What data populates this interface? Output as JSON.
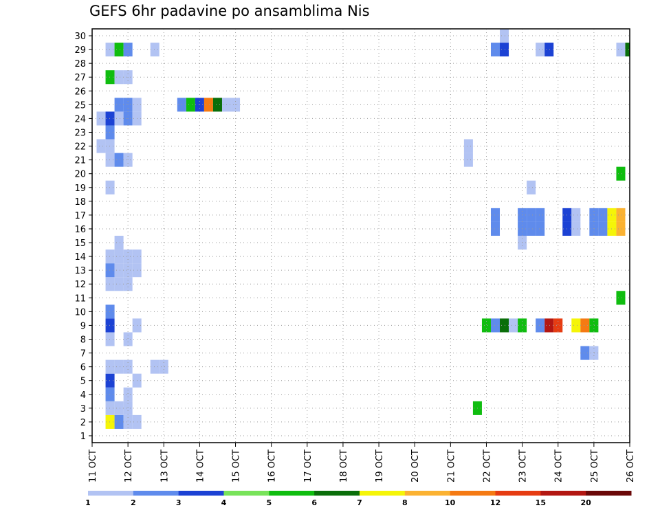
{
  "chart_data": {
    "type": "heatmap",
    "title": "GEFS 6hr padavine po ansamblima Nis",
    "y_ticks": [
      "1",
      "2",
      "3",
      "4",
      "5",
      "6",
      "7",
      "8",
      "9",
      "10",
      "11",
      "12",
      "13",
      "14",
      "15",
      "16",
      "17",
      "18",
      "19",
      "20",
      "21",
      "22",
      "23",
      "24",
      "25",
      "26",
      "27",
      "28",
      "29",
      "30"
    ],
    "ylim": [
      0.5,
      30.5
    ],
    "x_ticks": [
      "11 OCT",
      "12 OCT",
      "13 OCT",
      "14 OCT",
      "15 OCT",
      "16 OCT",
      "17 OCT",
      "18 OCT",
      "19 OCT",
      "20 OCT",
      "21 OCT",
      "22 OCT",
      "23 OCT",
      "24 OCT",
      "25 OCT",
      "26 OCT"
    ],
    "x_start": 11,
    "x_step_days": 0.25,
    "grid": true,
    "colorbar": {
      "labels": [
        "1",
        "2",
        "3",
        "4",
        "5",
        "6",
        "7",
        "8",
        "10",
        "12",
        "15",
        "20"
      ],
      "colors": [
        "#b2c3f3",
        "#5f8bec",
        "#1c42d4",
        "#78e35a",
        "#0fbd0f",
        "#0a6e0a",
        "#f5f508",
        "#fbb232",
        "#f57a13",
        "#e63c12",
        "#b31712",
        "#6b0808"
      ]
    },
    "cells": [
      [
        11.5,
        2,
        7
      ],
      [
        11.75,
        2,
        2
      ],
      [
        12,
        2,
        1
      ],
      [
        12.25,
        2,
        1
      ],
      [
        11.5,
        3,
        1
      ],
      [
        11.75,
        3,
        1
      ],
      [
        12,
        3,
        1
      ],
      [
        21.75,
        3,
        5
      ],
      [
        11.5,
        4,
        2
      ],
      [
        12,
        4,
        1
      ],
      [
        11.5,
        5,
        3
      ],
      [
        12.25,
        5,
        1
      ],
      [
        11.5,
        6,
        1
      ],
      [
        11.75,
        6,
        1
      ],
      [
        12,
        6,
        1
      ],
      [
        12.75,
        6,
        1
      ],
      [
        13,
        6,
        1
      ],
      [
        24.75,
        7,
        2
      ],
      [
        25,
        7,
        1
      ],
      [
        11.5,
        8,
        1
      ],
      [
        12,
        8,
        1
      ],
      [
        11.5,
        9,
        3
      ],
      [
        12.25,
        9,
        1
      ],
      [
        22,
        9,
        5
      ],
      [
        22.25,
        9,
        2
      ],
      [
        22.5,
        9,
        6
      ],
      [
        22.75,
        9,
        1
      ],
      [
        23,
        9,
        5
      ],
      [
        23.5,
        9,
        2
      ],
      [
        23.75,
        9,
        11
      ],
      [
        24,
        9,
        10
      ],
      [
        24.5,
        9,
        7
      ],
      [
        24.75,
        9,
        9
      ],
      [
        25,
        9,
        5
      ],
      [
        11.5,
        10,
        2
      ],
      [
        25.75,
        11,
        5
      ],
      [
        11.5,
        12,
        1
      ],
      [
        11.75,
        12,
        1
      ],
      [
        12,
        12,
        1
      ],
      [
        11.5,
        13,
        2
      ],
      [
        11.75,
        13,
        1
      ],
      [
        12,
        13,
        1
      ],
      [
        12.25,
        13,
        1
      ],
      [
        11.5,
        14,
        1
      ],
      [
        11.75,
        14,
        1
      ],
      [
        12,
        14,
        1
      ],
      [
        12.25,
        14,
        1
      ],
      [
        11.75,
        15,
        1
      ],
      [
        23,
        15,
        1
      ],
      [
        22.25,
        16,
        2
      ],
      [
        23,
        16,
        2
      ],
      [
        23.25,
        16,
        2
      ],
      [
        23.5,
        16,
        2
      ],
      [
        24.25,
        16,
        3
      ],
      [
        24.5,
        16,
        1
      ],
      [
        25,
        16,
        2
      ],
      [
        25.25,
        16,
        2
      ],
      [
        25.5,
        16,
        7
      ],
      [
        25.75,
        16,
        8
      ],
      [
        22.25,
        17,
        2
      ],
      [
        23,
        17,
        2
      ],
      [
        23.25,
        17,
        2
      ],
      [
        23.5,
        17,
        2
      ],
      [
        24.25,
        17,
        3
      ],
      [
        24.5,
        17,
        1
      ],
      [
        25,
        17,
        2
      ],
      [
        25.25,
        17,
        2
      ],
      [
        25.5,
        17,
        7
      ],
      [
        25.75,
        17,
        8
      ],
      [
        23.25,
        19,
        1
      ],
      [
        11.5,
        19,
        1
      ],
      [
        25.75,
        20,
        5
      ],
      [
        11.5,
        21,
        1
      ],
      [
        11.75,
        21,
        2
      ],
      [
        12,
        21,
        1
      ],
      [
        21.5,
        21,
        1
      ],
      [
        11.25,
        22,
        1
      ],
      [
        11.5,
        22,
        1
      ],
      [
        21.5,
        22,
        1
      ],
      [
        11.5,
        23,
        2
      ],
      [
        11.25,
        24,
        1
      ],
      [
        11.5,
        24,
        3
      ],
      [
        11.75,
        24,
        1
      ],
      [
        12,
        24,
        2
      ],
      [
        12.25,
        24,
        1
      ],
      [
        11.75,
        25,
        2
      ],
      [
        12,
        25,
        2
      ],
      [
        12.25,
        25,
        1
      ],
      [
        13.5,
        25,
        2
      ],
      [
        13.75,
        25,
        5
      ],
      [
        14,
        25,
        3
      ],
      [
        14.25,
        25,
        9
      ],
      [
        14.5,
        25,
        6
      ],
      [
        14.75,
        25,
        1
      ],
      [
        15,
        25,
        1
      ],
      [
        11.5,
        27,
        5
      ],
      [
        11.75,
        27,
        1
      ],
      [
        12,
        27,
        1
      ],
      [
        11.5,
        29,
        1
      ],
      [
        11.75,
        29,
        5
      ],
      [
        12,
        29,
        2
      ],
      [
        12.75,
        29,
        1
      ],
      [
        22.25,
        29,
        2
      ],
      [
        22.5,
        29,
        3
      ],
      [
        23.5,
        29,
        1
      ],
      [
        23.75,
        29,
        3
      ],
      [
        25.75,
        29,
        1
      ],
      [
        26,
        29,
        6
      ],
      [
        22.5,
        30,
        1
      ]
    ]
  }
}
